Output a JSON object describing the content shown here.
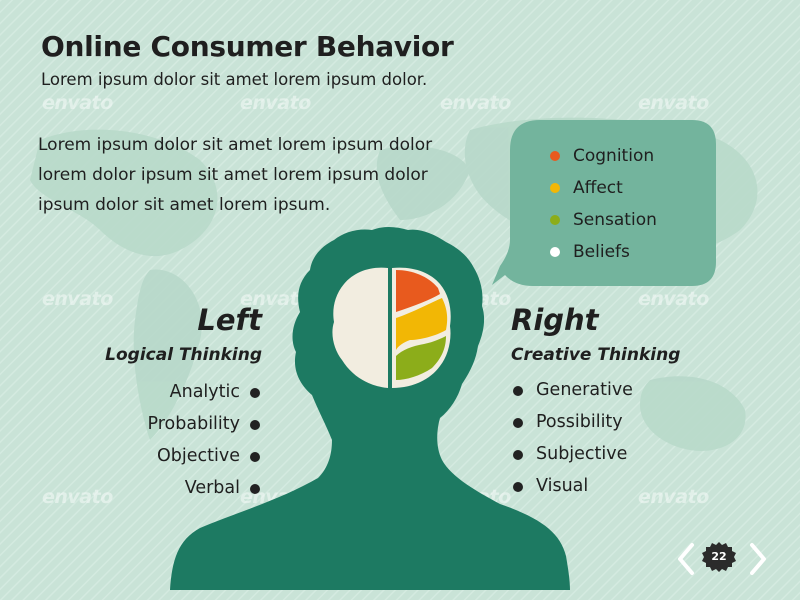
{
  "title": "Online Consumer Behavior",
  "subtitle": "Lorem ipsum dolor sit amet lorem ipsum dolor.",
  "body_lines": [
    "Lorem ipsum dolor sit amet lorem ipsum dolor",
    "lorem dolor  ipsum sit amet lorem ipsum dolor",
    "ipsum dolor sit amet lorem ipsum."
  ],
  "legend": [
    {
      "label": "Cognition",
      "color": "#e85a1e"
    },
    {
      "label": "Affect",
      "color": "#f2b705"
    },
    {
      "label": "Sensation",
      "color": "#8cad1a"
    },
    {
      "label": "Beliefs",
      "color": "#ffffff"
    }
  ],
  "left": {
    "heading": "Left",
    "subheading": "Logical Thinking",
    "items": [
      "Analytic",
      "Probability",
      "Objective",
      "Verbal"
    ]
  },
  "right": {
    "heading": "Right",
    "subheading": "Creative Thinking",
    "items": [
      "Generative",
      "Possibility",
      "Subjective",
      "Visual"
    ]
  },
  "page_number": "22",
  "watermark": "envato",
  "colors": {
    "background": "#c9e3d7",
    "silhouette": "#1d7a62",
    "bubble": "#73b49d",
    "brain_left": "#f2ede0"
  },
  "icons": {
    "prev": "chevron-left-icon",
    "next": "chevron-right-icon"
  }
}
